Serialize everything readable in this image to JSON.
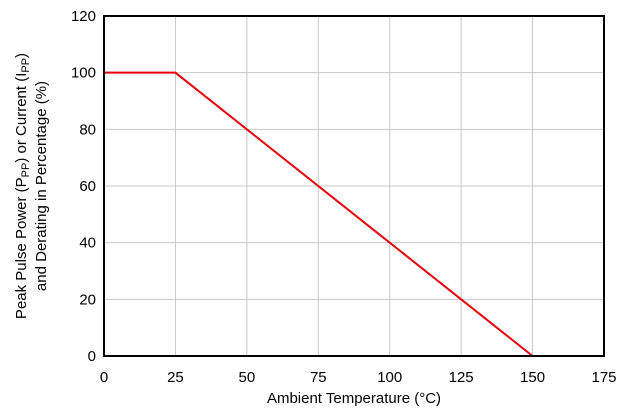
{
  "chart_data": {
    "type": "line",
    "title": "",
    "xlabel": "Ambient Temperature (°C)",
    "ylabel_line1_parts": [
      "Peak Pulse Power (P",
      "PP",
      ") or Current (I",
      "PP",
      ")"
    ],
    "ylabel_line2": "and Derating in Percentage (%)",
    "xlim": [
      0,
      175
    ],
    "ylim": [
      0,
      120
    ],
    "xticks": [
      0,
      25,
      50,
      75,
      100,
      125,
      150,
      175
    ],
    "yticks": [
      0,
      20,
      40,
      60,
      80,
      100,
      120
    ],
    "xtick_labels": [
      "0",
      "25",
      "50",
      "75",
      "100",
      "125",
      "150",
      "175"
    ],
    "ytick_labels": [
      "0",
      "20",
      "40",
      "60",
      "80",
      "100",
      "120"
    ],
    "grid": true,
    "series": [
      {
        "color": "#e8000b",
        "x": [
          0,
          25,
          150
        ],
        "y": [
          100,
          100,
          0
        ]
      }
    ]
  }
}
